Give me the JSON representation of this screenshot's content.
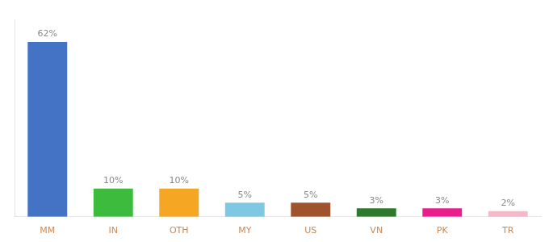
{
  "chart_data": {
    "type": "bar",
    "categories": [
      "MM",
      "IN",
      "OTH",
      "MY",
      "US",
      "VN",
      "PK",
      "TR"
    ],
    "values": [
      62,
      10,
      10,
      5,
      5,
      3,
      3,
      2
    ],
    "value_labels": [
      "62%",
      "10%",
      "10%",
      "5%",
      "5%",
      "3%",
      "3%",
      "2%"
    ],
    "colors": [
      "#4472c4",
      "#3dbb3d",
      "#f5a623",
      "#7ec8e3",
      "#a0522d",
      "#2d7a2d",
      "#e91e8c",
      "#f4b8c8"
    ],
    "ylim": [
      0,
      70
    ],
    "grid": false,
    "data_labels": true,
    "tick_labels": "x"
  }
}
